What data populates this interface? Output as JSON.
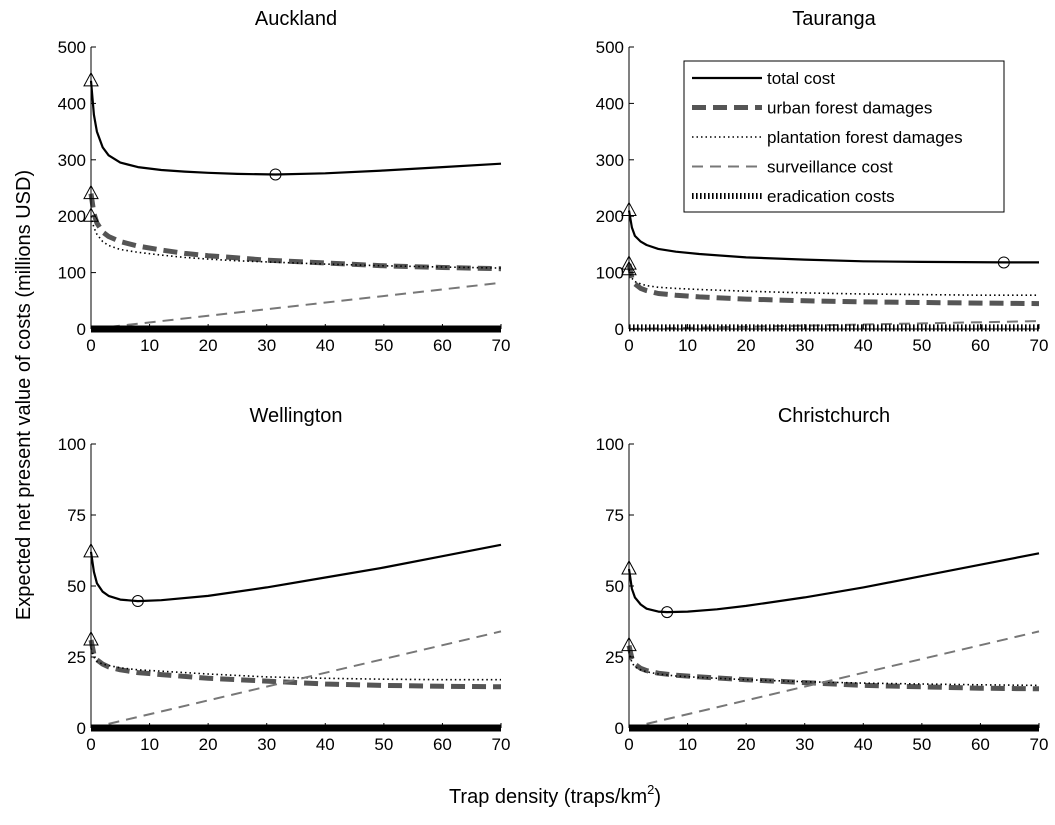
{
  "figure": {
    "xlabel": "Trap density (traps/km",
    "xlabel_sup": "2",
    "xlabel_close": ")",
    "ylabel": "Expected net present value of costs (millions USD)"
  },
  "colors": {
    "total": "#000000",
    "urban": "#555555",
    "plantation": "#000000",
    "surveillance": "#777777",
    "eradication": "#000000",
    "markers": "#000000",
    "background": "#ffffff"
  },
  "legend": {
    "panel": "Tauranga",
    "placement": "top-right",
    "entries": [
      {
        "key": "total",
        "label": "total cost"
      },
      {
        "key": "urban",
        "label": "urban forest damages"
      },
      {
        "key": "plantation",
        "label": "plantation forest damages"
      },
      {
        "key": "surveillance",
        "label": "surveillance cost"
      },
      {
        "key": "eradication",
        "label": "eradication costs"
      }
    ]
  },
  "chart_data": [
    {
      "title": "Auckland",
      "type": "line",
      "xlim": [
        0,
        70
      ],
      "ylim": [
        0,
        500
      ],
      "xticks": [
        0,
        10,
        20,
        30,
        40,
        50,
        60,
        70
      ],
      "yticks": [
        0,
        100,
        200,
        300,
        400,
        500
      ],
      "series": [
        {
          "key": "total",
          "name": "total cost",
          "x": [
            0,
            0.5,
            1,
            2,
            3,
            5,
            8,
            12,
            16,
            20,
            25,
            31.5,
            40,
            50,
            60,
            70
          ],
          "y": [
            440,
            380,
            350,
            322,
            308,
            295,
            287,
            282,
            279,
            277,
            275,
            274,
            276,
            281,
            287,
            293
          ]
        },
        {
          "key": "urban",
          "name": "urban forest damages",
          "x": [
            0,
            0.5,
            1,
            2,
            3,
            5,
            8,
            12,
            16,
            20,
            25,
            30,
            40,
            50,
            60,
            70
          ],
          "y": [
            240,
            205,
            188,
            172,
            164,
            155,
            147,
            140,
            134,
            130,
            126,
            122,
            117,
            112,
            109,
            107
          ]
        },
        {
          "key": "plantation",
          "name": "plantation forest damages",
          "x": [
            0,
            0.5,
            1,
            2,
            3,
            5,
            8,
            12,
            16,
            20,
            25,
            30,
            40,
            50,
            60,
            70
          ],
          "y": [
            200,
            180,
            168,
            155,
            148,
            141,
            136,
            131,
            127,
            124,
            121,
            119,
            115,
            112,
            110,
            108
          ]
        },
        {
          "key": "surveillance",
          "name": "surveillance cost",
          "x": [
            0,
            70
          ],
          "y": [
            0,
            82
          ]
        },
        {
          "key": "eradication",
          "name": "eradication costs",
          "x": [
            0,
            70
          ],
          "y": [
            0,
            0
          ]
        }
      ],
      "markers": {
        "triangles": [
          {
            "x": 0,
            "y": 440
          },
          {
            "x": 0,
            "y": 240
          },
          {
            "x": 0,
            "y": 200
          }
        ],
        "circles": [
          {
            "x": 31.5,
            "y": 274
          }
        ]
      }
    },
    {
      "title": "Tauranga",
      "type": "line",
      "xlim": [
        0,
        70
      ],
      "ylim": [
        0,
        500
      ],
      "xticks": [
        0,
        10,
        20,
        30,
        40,
        50,
        60,
        70
      ],
      "yticks": [
        0,
        100,
        200,
        300,
        400,
        500
      ],
      "series": [
        {
          "key": "total",
          "name": "total cost",
          "x": [
            0,
            0.5,
            1,
            2,
            3,
            5,
            8,
            12,
            20,
            30,
            40,
            50,
            64,
            70
          ],
          "y": [
            210,
            180,
            165,
            155,
            149,
            142,
            137,
            133,
            127,
            123,
            120,
            119,
            118,
            118
          ]
        },
        {
          "key": "urban",
          "name": "urban forest damages",
          "x": [
            0,
            0.5,
            1,
            2,
            3,
            5,
            8,
            12,
            20,
            30,
            40,
            50,
            60,
            70
          ],
          "y": [
            115,
            90,
            80,
            72,
            68,
            63,
            60,
            57,
            53,
            50,
            48,
            47,
            46,
            45
          ]
        },
        {
          "key": "plantation",
          "name": "plantation forest damages",
          "x": [
            0,
            0.5,
            1,
            2,
            3,
            5,
            8,
            12,
            20,
            30,
            40,
            50,
            60,
            70
          ],
          "y": [
            105,
            90,
            84,
            80,
            77,
            74,
            72,
            70,
            67,
            64,
            62,
            61,
            60,
            60
          ]
        },
        {
          "key": "surveillance",
          "name": "surveillance cost",
          "x": [
            0,
            70
          ],
          "y": [
            0,
            14
          ]
        },
        {
          "key": "eradication",
          "name": "eradication costs",
          "x": [
            0,
            70
          ],
          "y": [
            2,
            2
          ]
        }
      ],
      "markers": {
        "triangles": [
          {
            "x": 0,
            "y": 210
          },
          {
            "x": 0,
            "y": 115
          },
          {
            "x": 0,
            "y": 105
          }
        ],
        "circles": [
          {
            "x": 64,
            "y": 118
          }
        ]
      }
    },
    {
      "title": "Wellington",
      "type": "line",
      "xlim": [
        0,
        70
      ],
      "ylim": [
        0,
        100
      ],
      "xticks": [
        0,
        10,
        20,
        30,
        40,
        50,
        60,
        70
      ],
      "yticks": [
        0,
        25,
        50,
        75,
        100
      ],
      "series": [
        {
          "key": "total",
          "name": "total cost",
          "x": [
            0,
            0.5,
            1,
            2,
            3,
            5,
            8,
            12,
            20,
            30,
            40,
            50,
            60,
            70
          ],
          "y": [
            62,
            55,
            51,
            48,
            46.5,
            45.2,
            44.7,
            45,
            46.5,
            49.5,
            53,
            56.5,
            60.5,
            64.5
          ]
        },
        {
          "key": "urban",
          "name": "urban forest damages",
          "x": [
            0,
            0.5,
            1,
            2,
            3,
            5,
            8,
            12,
            20,
            30,
            40,
            50,
            60,
            70
          ],
          "y": [
            31,
            26,
            24,
            22.5,
            21.5,
            20.5,
            19.5,
            18.8,
            17.5,
            16.5,
            15.5,
            15,
            14.7,
            14.5
          ]
        },
        {
          "key": "plantation",
          "name": "plantation forest damages",
          "x": [
            0,
            0.5,
            1,
            2,
            3,
            5,
            8,
            12,
            20,
            30,
            40,
            50,
            60,
            70
          ],
          "y": [
            28,
            25,
            23.5,
            22.5,
            22,
            21.2,
            20.5,
            20,
            19,
            18,
            17.5,
            17.2,
            17,
            17
          ]
        },
        {
          "key": "surveillance",
          "name": "surveillance cost",
          "x": [
            0,
            70
          ],
          "y": [
            0,
            34
          ]
        },
        {
          "key": "eradication",
          "name": "eradication costs",
          "x": [
            0,
            70
          ],
          "y": [
            0,
            0
          ]
        }
      ],
      "markers": {
        "triangles": [
          {
            "x": 0,
            "y": 62
          },
          {
            "x": 0,
            "y": 31
          }
        ],
        "circles": [
          {
            "x": 8,
            "y": 44.7
          }
        ]
      }
    },
    {
      "title": "Christchurch",
      "type": "line",
      "xlim": [
        0,
        70
      ],
      "ylim": [
        0,
        100
      ],
      "xticks": [
        0,
        10,
        20,
        30,
        40,
        50,
        60,
        70
      ],
      "yticks": [
        0,
        25,
        50,
        75,
        100
      ],
      "series": [
        {
          "key": "total",
          "name": "total cost",
          "x": [
            0,
            0.5,
            1,
            2,
            3,
            5,
            6.5,
            10,
            15,
            20,
            30,
            40,
            50,
            60,
            70
          ],
          "y": [
            56,
            49,
            46,
            43.5,
            42,
            41,
            40.8,
            41,
            41.8,
            43,
            46,
            49.5,
            53.5,
            57.5,
            61.5
          ]
        },
        {
          "key": "urban",
          "name": "urban forest damages",
          "x": [
            0,
            0.5,
            1,
            2,
            3,
            5,
            8,
            12,
            20,
            30,
            40,
            50,
            60,
            70
          ],
          "y": [
            29,
            24.5,
            22.5,
            21,
            20.2,
            19.3,
            18.6,
            18,
            17,
            16,
            15,
            14.5,
            14,
            13.8
          ]
        },
        {
          "key": "plantation",
          "name": "plantation forest damages",
          "x": [
            0,
            0.5,
            1,
            2,
            3,
            5,
            8,
            12,
            20,
            30,
            40,
            50,
            60,
            70
          ],
          "y": [
            27,
            23,
            21.5,
            20.5,
            19.8,
            19,
            18.3,
            17.8,
            17,
            16.3,
            15.8,
            15.5,
            15.2,
            15
          ]
        },
        {
          "key": "surveillance",
          "name": "surveillance cost",
          "x": [
            0,
            70
          ],
          "y": [
            0,
            34
          ]
        },
        {
          "key": "eradication",
          "name": "eradication costs",
          "x": [
            0,
            70
          ],
          "y": [
            0,
            0
          ]
        }
      ],
      "markers": {
        "triangles": [
          {
            "x": 0,
            "y": 56
          },
          {
            "x": 0,
            "y": 29
          }
        ],
        "circles": [
          {
            "x": 6.5,
            "y": 40.8
          }
        ]
      }
    }
  ]
}
